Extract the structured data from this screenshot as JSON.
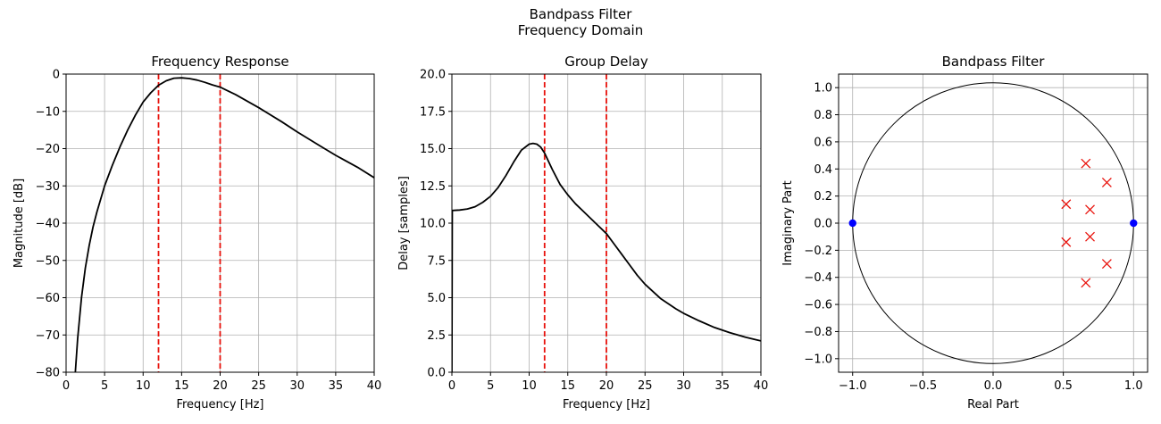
{
  "figure": {
    "suptitle_line1": "Bandpass Filter",
    "suptitle_line2": "Frequency Domain"
  },
  "chart_data": [
    {
      "type": "line",
      "title": "Frequency Response",
      "xlabel": "Frequency [Hz]",
      "ylabel": "Magnitude [dB]",
      "xlim": [
        0,
        40
      ],
      "ylim": [
        -80,
        0
      ],
      "xticks": [
        0,
        5,
        10,
        15,
        20,
        25,
        30,
        35,
        40
      ],
      "yticks": [
        -80,
        -70,
        -60,
        -50,
        -40,
        -30,
        -20,
        -10,
        0
      ],
      "xtick_labels": [
        "0",
        "5",
        "10",
        "15",
        "20",
        "25",
        "30",
        "35",
        "40"
      ],
      "ytick_labels": [
        "−80",
        "−70",
        "−60",
        "−50",
        "−40",
        "−30",
        "−20",
        "−10",
        "0"
      ],
      "grid": true,
      "series": [
        {
          "color": "#000000",
          "x": [
            1.2,
            1.5,
            2,
            2.5,
            3,
            3.5,
            4,
            5,
            6,
            7,
            8,
            9,
            10,
            11,
            12,
            13,
            14,
            15,
            16,
            17,
            18,
            19,
            20,
            22,
            25,
            28,
            30,
            33,
            35,
            38,
            40
          ],
          "y": [
            -80,
            -71,
            -60,
            -52,
            -46,
            -41,
            -37,
            -30,
            -24.5,
            -19.5,
            -15,
            -11,
            -7.5,
            -5,
            -3,
            -1.8,
            -1.1,
            -1,
            -1.2,
            -1.6,
            -2.2,
            -2.9,
            -3.5,
            -5.5,
            -9,
            -12.8,
            -15.5,
            -19.3,
            -21.8,
            -25.2,
            -27.8
          ]
        }
      ],
      "vlines": {
        "x": [
          12,
          20
        ],
        "color": "#e8120c",
        "style": "dashed"
      }
    },
    {
      "type": "line",
      "title": "Group Delay",
      "xlabel": "Frequency [Hz]",
      "ylabel": "Delay [samples]",
      "xlim": [
        0,
        40
      ],
      "ylim": [
        0,
        20
      ],
      "xticks": [
        0,
        5,
        10,
        15,
        20,
        25,
        30,
        35,
        40
      ],
      "yticks": [
        0,
        2.5,
        5,
        7.5,
        10,
        12.5,
        15,
        17.5,
        20
      ],
      "xtick_labels": [
        "0",
        "5",
        "10",
        "15",
        "20",
        "25",
        "30",
        "35",
        "40"
      ],
      "ytick_labels": [
        "0.0",
        "2.5",
        "5.0",
        "7.5",
        "10.0",
        "12.5",
        "15.0",
        "17.5",
        "20.0"
      ],
      "grid": true,
      "series": [
        {
          "color": "#000000",
          "x": [
            0,
            0.05,
            1,
            2,
            3,
            4,
            5,
            6,
            7,
            8,
            9,
            10,
            10.5,
            11,
            11.5,
            12,
            13,
            14,
            15,
            16,
            17,
            18,
            19,
            20,
            21,
            22,
            23,
            24,
            25,
            27,
            29,
            30,
            32,
            34,
            36,
            38,
            40
          ],
          "y": [
            0,
            10.85,
            10.88,
            10.95,
            11.1,
            11.4,
            11.8,
            12.4,
            13.2,
            14.1,
            14.9,
            15.3,
            15.35,
            15.3,
            15.1,
            14.7,
            13.6,
            12.6,
            11.9,
            11.3,
            10.8,
            10.3,
            9.8,
            9.3,
            8.6,
            7.9,
            7.2,
            6.5,
            5.9,
            4.95,
            4.25,
            3.95,
            3.45,
            3.0,
            2.65,
            2.35,
            2.1
          ]
        }
      ],
      "vlines": {
        "x": [
          12,
          20
        ],
        "color": "#e8120c",
        "style": "dashed"
      }
    },
    {
      "type": "scatter",
      "title": "Bandpass Filter",
      "xlabel": "Real Part",
      "ylabel": "Imaginary Part",
      "xlim": [
        -1.1,
        1.1
      ],
      "ylim": [
        -1.1,
        1.1
      ],
      "xticks": [
        -1,
        -0.5,
        0,
        0.5,
        1
      ],
      "yticks": [
        -1,
        -0.8,
        -0.6,
        -0.4,
        -0.2,
        0,
        0.2,
        0.4,
        0.6,
        0.8,
        1
      ],
      "xtick_labels": [
        "−1.0",
        "−0.5",
        "0.0",
        "0.5",
        "1.0"
      ],
      "ytick_labels": [
        "−1.0",
        "−0.8",
        "−0.6",
        "−0.4",
        "−0.2",
        "0.0",
        "0.2",
        "0.4",
        "0.6",
        "0.8",
        "1.0"
      ],
      "grid": true,
      "unit_circle": true,
      "zeros": {
        "color": "#0000ff",
        "marker": "circle",
        "points": [
          [
            -1.0,
            0.0
          ],
          [
            1.0,
            0.0
          ]
        ]
      },
      "poles": {
        "color": "#e8120c",
        "marker": "x",
        "points": [
          [
            0.66,
            0.44
          ],
          [
            0.81,
            0.3
          ],
          [
            0.52,
            0.14
          ],
          [
            0.69,
            0.1
          ],
          [
            0.52,
            -0.14
          ],
          [
            0.69,
            -0.1
          ],
          [
            0.81,
            -0.3
          ],
          [
            0.66,
            -0.44
          ]
        ]
      }
    }
  ]
}
